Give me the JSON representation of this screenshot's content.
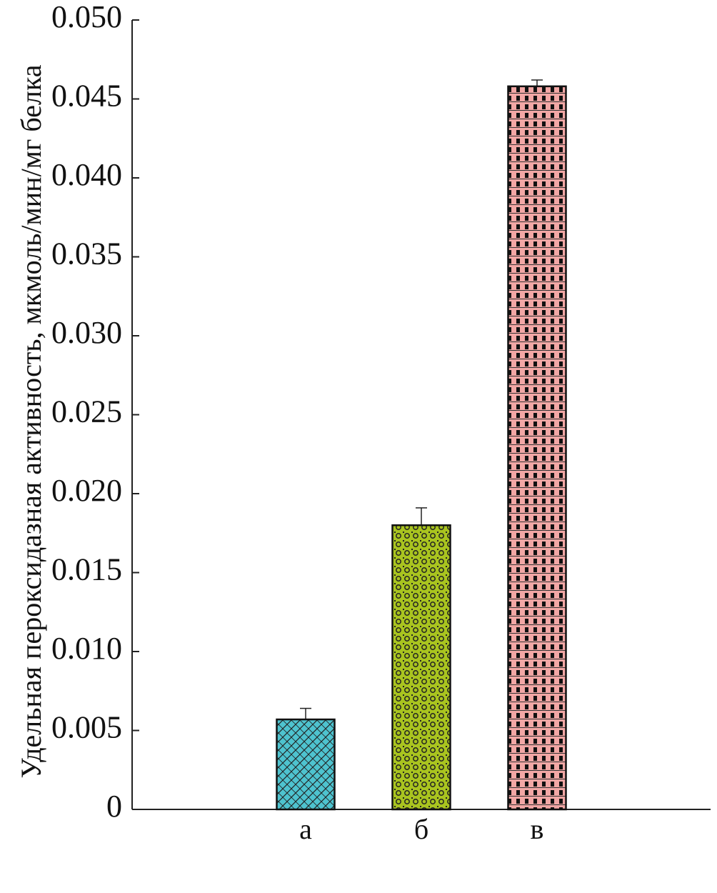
{
  "chart_data": {
    "type": "bar",
    "y_label": "Удельная пероксидазная активность, мкмоль/мин/мг белка",
    "categories": [
      null,
      "а",
      "б",
      "в",
      null
    ],
    "values": [
      null,
      0.0057,
      0.018,
      0.0458,
      null
    ],
    "errors": [
      null,
      0.0007,
      0.0011,
      0.0004,
      null
    ],
    "colors": [
      null,
      "#4ec3cf",
      "#a9c41f",
      "#f2a7a5",
      null
    ],
    "ylim": [
      0,
      0.05
    ],
    "yticks": [
      0,
      0.005,
      {
        "value": 0.01,
        "label": "0.010"
      },
      0.015,
      {
        "value": 0.02,
        "label": "0.020"
      },
      0.025,
      {
        "value": 0.03,
        "label": "0.030"
      },
      0.035,
      {
        "value": 0.04,
        "label": "0.040"
      },
      0.045,
      {
        "value": 0.05,
        "label": "0.050"
      }
    ]
  }
}
